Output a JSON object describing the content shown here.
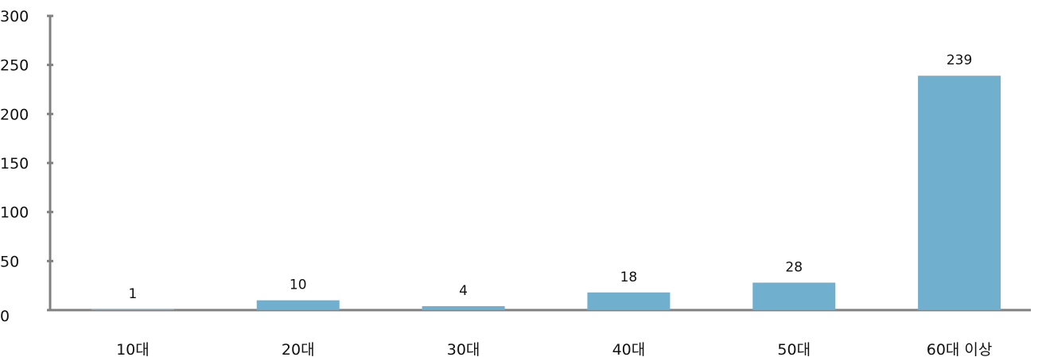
{
  "chart_data": {
    "type": "bar",
    "categories": [
      "10대",
      "20대",
      "30대",
      "40대",
      "50대",
      "60대 이상"
    ],
    "values": [
      1,
      10,
      4,
      18,
      28,
      239
    ],
    "data_labels": [
      "1",
      "10",
      "4",
      "18",
      "28",
      "239"
    ],
    "title": "",
    "xlabel": "",
    "ylabel": "",
    "ylim": [
      0,
      300
    ],
    "yticks": [
      0,
      50,
      100,
      150,
      200,
      250,
      300
    ],
    "ytick_labels": [
      "0",
      "50",
      "100",
      "150",
      "200",
      "250",
      "300"
    ],
    "grid": false,
    "legend": "none",
    "bar_color": "#71afcf",
    "axis_color": "#808080"
  }
}
